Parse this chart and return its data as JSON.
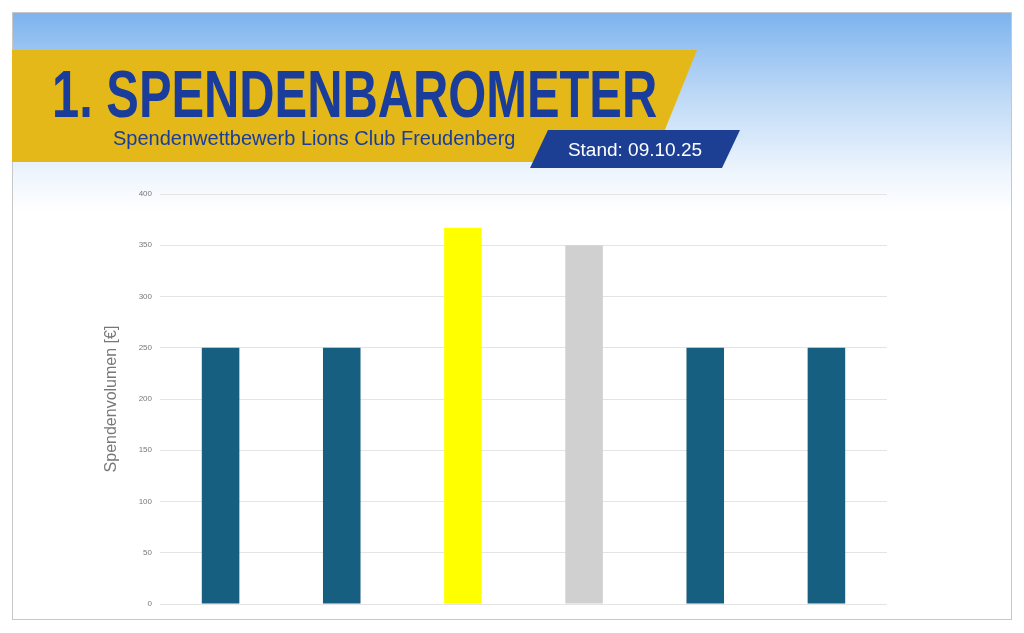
{
  "chart_data": {
    "type": "bar",
    "title": "1. SPENDENBAROMETER",
    "subtitle": "Spendenwettbewerb Lions Club Freudenberg",
    "annotations": [
      "Stand: 09.10.25"
    ],
    "ylabel": "Spendenvolumen [€]",
    "categories": [
      null,
      null,
      null,
      null,
      null,
      null
    ],
    "values": [
      250,
      250,
      367,
      350,
      250,
      250
    ],
    "colors": [
      "#175f80",
      "#175f80",
      "#ffff00",
      "#d0d0d0",
      "#175f80",
      "#175f80"
    ],
    "ylim": [
      0,
      400
    ],
    "yticks": [
      0,
      50,
      100,
      150,
      200,
      250,
      300,
      350,
      400
    ],
    "grid": "y",
    "tick_labels": "y"
  }
}
